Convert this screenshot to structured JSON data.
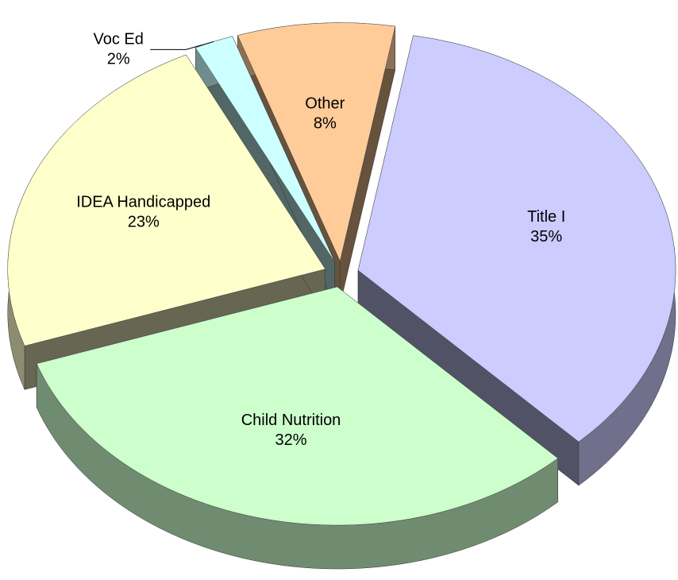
{
  "chart_data": {
    "type": "pie",
    "categories": [
      "Title I",
      "Child Nutrition",
      "IDEA Handicapped",
      "Voc Ed",
      "Other"
    ],
    "values": [
      35,
      32,
      23,
      2,
      8
    ],
    "value_labels": [
      "35%",
      "32%",
      "23%",
      "2%",
      "8%"
    ],
    "colors": [
      "#ccccff",
      "#ccffcc",
      "#ffffcc",
      "#ccffff",
      "#ffcc99"
    ]
  }
}
